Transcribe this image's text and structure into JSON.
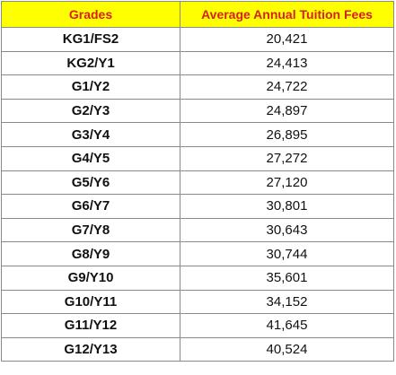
{
  "colors": {
    "header_background": "#ffff00",
    "header_text": "#d81f1f",
    "cell_text": "#111111",
    "border": "#8a8a8a"
  },
  "table": {
    "headers": {
      "grades": "Grades",
      "fees": "Average Annual  Tuition Fees"
    },
    "rows": [
      {
        "grade": "KG1/FS2",
        "fee": "20,421"
      },
      {
        "grade": "KG2/Y1",
        "fee": "24,413"
      },
      {
        "grade": "G1/Y2",
        "fee": "24,722"
      },
      {
        "grade": "G2/Y3",
        "fee": "24,897"
      },
      {
        "grade": "G3/Y4",
        "fee": "26,895"
      },
      {
        "grade": "G4/Y5",
        "fee": "27,272"
      },
      {
        "grade": "G5/Y6",
        "fee": "27,120"
      },
      {
        "grade": "G6/Y7",
        "fee": "30,801"
      },
      {
        "grade": "G7/Y8",
        "fee": "30,643"
      },
      {
        "grade": "G8/Y9",
        "fee": "30,744"
      },
      {
        "grade": "G9/Y10",
        "fee": "35,601"
      },
      {
        "grade": "G10/Y11",
        "fee": "34,152"
      },
      {
        "grade": "G11/Y12",
        "fee": "41,645"
      },
      {
        "grade": "G12/Y13",
        "fee": "40,524"
      }
    ]
  }
}
